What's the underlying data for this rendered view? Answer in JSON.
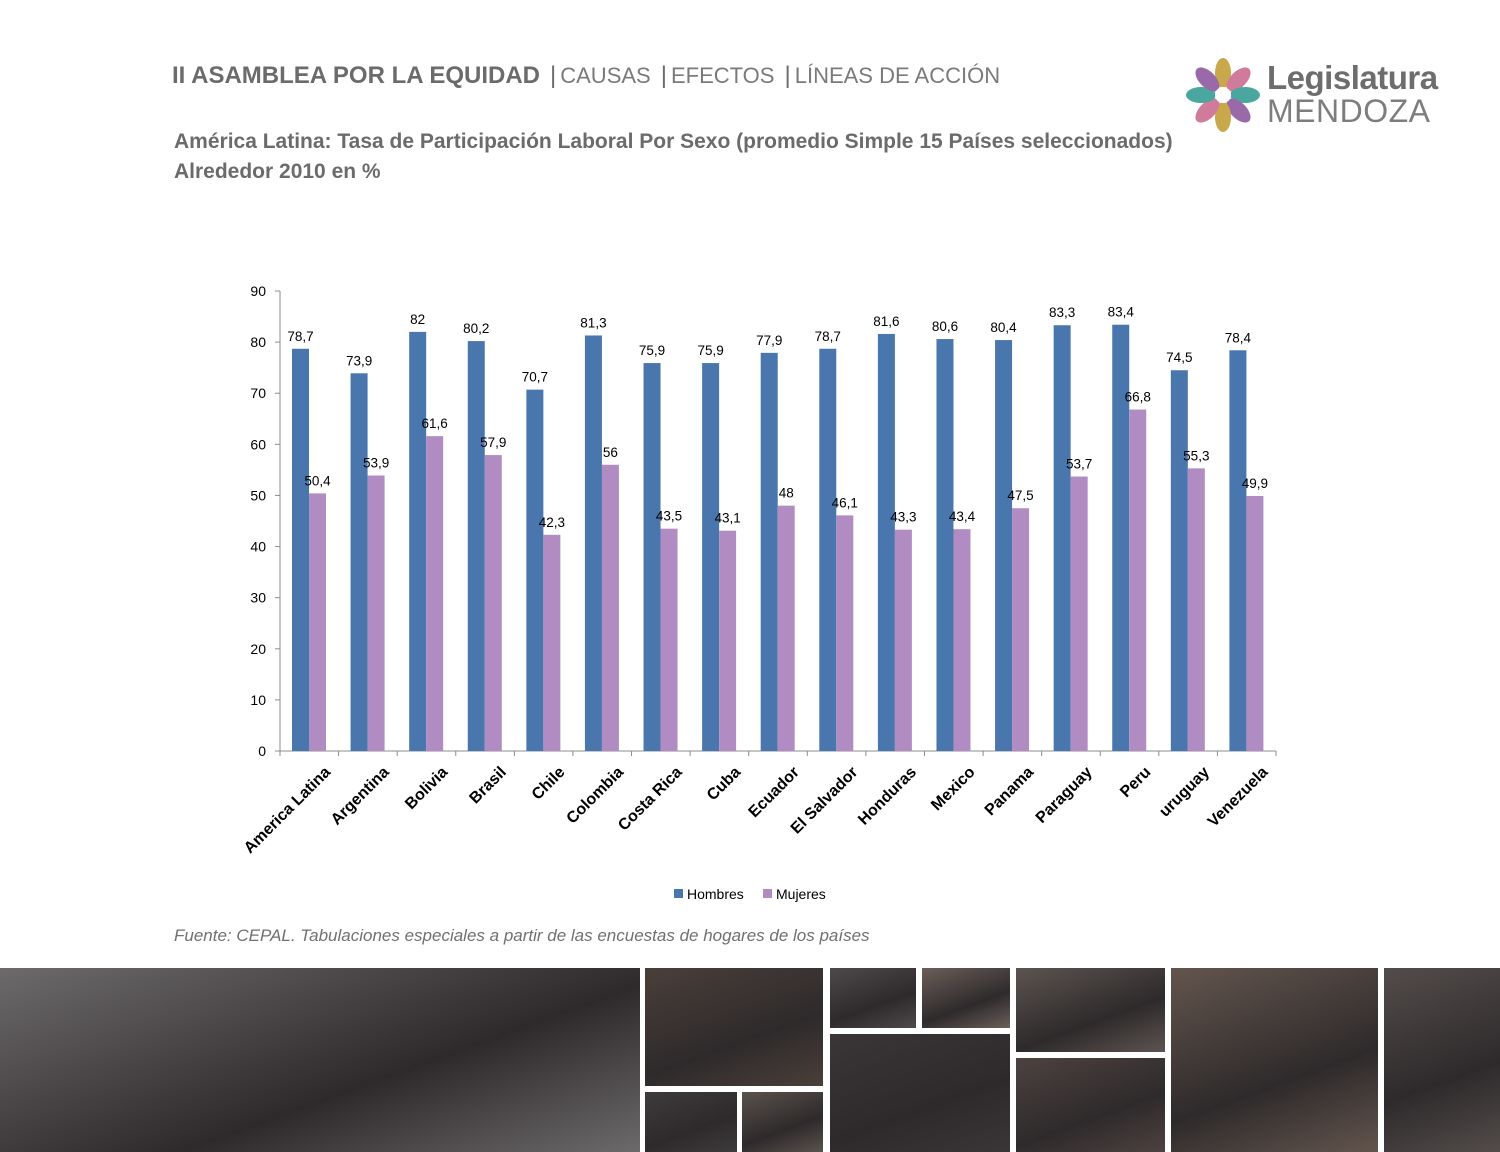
{
  "header": {
    "title": "II ASAMBLEA POR LA EQUIDAD",
    "sections": [
      "CAUSAS",
      "EFECTOS",
      "LÍNEAS DE ACCIÓN"
    ]
  },
  "logo": {
    "line1": "Legislatura",
    "line2": "MENDOZA"
  },
  "chart_title": {
    "line1": "América Latina: Tasa de Participación Laboral Por Sexo (promedio Simple 15 Países seleccionados)",
    "line2": "Alrededor 2010 en %"
  },
  "chart_data": {
    "type": "bar",
    "categories": [
      "America Latina",
      "Argentina",
      "Bolivia",
      "Brasil",
      "Chile",
      "Colombia",
      "Costa Rica",
      "Cuba",
      "Ecuador",
      "El Salvador",
      "Honduras",
      "Mexico",
      "Panama",
      "Paraguay",
      "Peru",
      "uruguay",
      "Venezuela"
    ],
    "series": [
      {
        "name": "Hombres",
        "color": "#4a76ae",
        "values": [
          78.7,
          73.9,
          82,
          80.2,
          70.7,
          81.3,
          75.9,
          75.9,
          77.9,
          78.7,
          81.6,
          80.6,
          80.4,
          83.3,
          83.4,
          74.5,
          78.4
        ],
        "labels": [
          "78,7",
          "73,9",
          "82",
          "80,2",
          "70,7",
          "81,3",
          "75,9",
          "75,9",
          "77,9",
          "78,7",
          "81,6",
          "80,6",
          "80,4",
          "83,3",
          "83,4",
          "74,5",
          "78,4"
        ]
      },
      {
        "name": "Mujeres",
        "color": "#b08cc2",
        "values": [
          50.4,
          53.9,
          61.6,
          57.9,
          42.3,
          56,
          43.5,
          43.1,
          48,
          46.1,
          43.3,
          43.4,
          47.5,
          53.7,
          66.8,
          55.3,
          49.9
        ],
        "labels": [
          "50,4",
          "53,9",
          "61,6",
          "57,9",
          "42,3",
          "56",
          "43,5",
          "43,1",
          "48",
          "46,1",
          "43,3",
          "43,4",
          "47,5",
          "53,7",
          "66,8",
          "55,3",
          "49,9"
        ]
      }
    ],
    "ylim": [
      0,
      90
    ],
    "yticks": [
      "0",
      "10",
      "20",
      "30",
      "40",
      "50",
      "60",
      "70",
      "80",
      "90"
    ],
    "grid": false,
    "legend": "bottom"
  },
  "source": "Fuente: CEPAL. Tabulaciones especiales a partir de las encuestas de hogares de los países",
  "photos": [
    {
      "color": "#6d6a6b"
    },
    {
      "color": "#4a3f3a"
    },
    {
      "color": "#3e3b3d"
    },
    {
      "color": "#5a524c"
    },
    {
      "color": "#4e4a4b"
    },
    {
      "color": "#6b5f59"
    },
    {
      "color": "#3a3637"
    },
    {
      "color": "#5c5450"
    },
    {
      "color": "#4d4240"
    },
    {
      "color": "#63554d"
    },
    {
      "color": "#534c4b"
    },
    {
      "color": "#6e625a"
    }
  ]
}
